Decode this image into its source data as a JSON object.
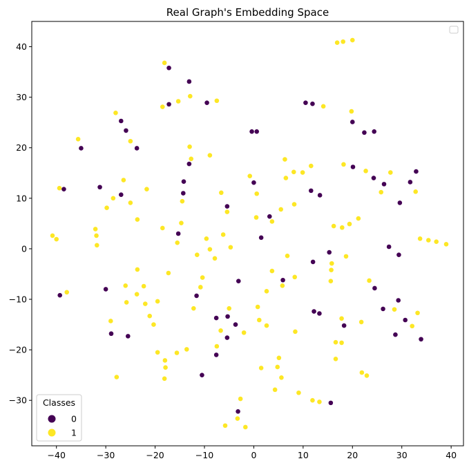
{
  "chart_data": {
    "type": "scatter",
    "title": "Real Graph's Embedding Space",
    "xlabel": "",
    "ylabel": "",
    "xlim": [
      -45,
      42.5
    ],
    "ylim": [
      -39,
      45
    ],
    "x_ticks": [
      -40,
      -30,
      -20,
      -10,
      0,
      10,
      20,
      30,
      40
    ],
    "y_ticks": [
      -30,
      -20,
      -10,
      0,
      10,
      20,
      30,
      40
    ],
    "grid": false,
    "legend": {
      "title": "Classes",
      "placement": "lower-left",
      "entries": [
        {
          "label": "0",
          "color": "#440154"
        },
        {
          "label": "1",
          "color": "#fde725"
        }
      ]
    },
    "series": [
      {
        "name": "0",
        "color": "#440154",
        "points": [
          [
            -17.2,
            35.8
          ],
          [
            -13.1,
            33.1
          ],
          [
            -17.2,
            28.6
          ],
          [
            -9.5,
            28.9
          ],
          [
            -26.9,
            25.3
          ],
          [
            -25.9,
            23.4
          ],
          [
            -23.7,
            19.9
          ],
          [
            -35.0,
            19.9
          ],
          [
            -13.1,
            16.8
          ],
          [
            -14.2,
            13.3
          ],
          [
            -31.2,
            12.2
          ],
          [
            -38.5,
            11.8
          ],
          [
            -26.9,
            10.7
          ],
          [
            -14.3,
            11.0
          ],
          [
            -15.3,
            3.0
          ],
          [
            -5.4,
            8.4
          ],
          [
            -0.4,
            23.2
          ],
          [
            0.6,
            23.2
          ],
          [
            10.5,
            28.9
          ],
          [
            11.9,
            28.7
          ],
          [
            20.0,
            25.1
          ],
          [
            22.4,
            23.0
          ],
          [
            24.4,
            23.2
          ],
          [
            20.1,
            16.2
          ],
          [
            24.3,
            14.0
          ],
          [
            26.4,
            12.8
          ],
          [
            29.6,
            9.1
          ],
          [
            31.7,
            13.2
          ],
          [
            32.9,
            15.3
          ],
          [
            11.6,
            11.5
          ],
          [
            13.4,
            10.6
          ],
          [
            0.0,
            13.1
          ],
          [
            3.2,
            6.4
          ],
          [
            1.5,
            2.2
          ],
          [
            15.3,
            -0.7
          ],
          [
            12.0,
            -2.6
          ],
          [
            27.4,
            0.4
          ],
          [
            29.4,
            -1.2
          ],
          [
            5.9,
            -6.2
          ],
          [
            24.5,
            -7.8
          ],
          [
            26.2,
            -11.9
          ],
          [
            29.3,
            -10.2
          ],
          [
            30.7,
            -14.1
          ],
          [
            28.7,
            -17.0
          ],
          [
            33.9,
            -17.9
          ],
          [
            12.2,
            -12.4
          ],
          [
            13.3,
            -12.8
          ],
          [
            18.3,
            -15.2
          ],
          [
            -3.1,
            -6.4
          ],
          [
            -7.6,
            -13.7
          ],
          [
            -5.3,
            -13.4
          ],
          [
            -3.7,
            -15.0
          ],
          [
            -5.4,
            -17.6
          ],
          [
            -7.6,
            -21.0
          ],
          [
            -11.6,
            -9.3
          ],
          [
            -10.5,
            -25.0
          ],
          [
            -30.0,
            -8.0
          ],
          [
            -39.3,
            -9.2
          ],
          [
            -28.9,
            -16.8
          ],
          [
            -25.5,
            -17.3
          ],
          [
            -3.2,
            -32.2
          ],
          [
            15.6,
            -30.5
          ]
        ]
      },
      {
        "name": "1",
        "color": "#fde725",
        "points": [
          [
            16.9,
            40.8
          ],
          [
            18.1,
            41.0
          ],
          [
            20.0,
            41.3
          ],
          [
            -18.1,
            36.8
          ],
          [
            -12.9,
            30.2
          ],
          [
            -15.3,
            29.2
          ],
          [
            -18.5,
            28.1
          ],
          [
            -7.5,
            29.3
          ],
          [
            -28.0,
            26.9
          ],
          [
            -35.6,
            21.7
          ],
          [
            -25.0,
            21.3
          ],
          [
            -13.0,
            20.2
          ],
          [
            -8.9,
            18.5
          ],
          [
            -12.7,
            17.8
          ],
          [
            14.1,
            28.2
          ],
          [
            19.8,
            27.2
          ],
          [
            6.3,
            17.7
          ],
          [
            8.1,
            15.2
          ],
          [
            9.9,
            15.1
          ],
          [
            11.6,
            16.4
          ],
          [
            18.2,
            16.7
          ],
          [
            22.7,
            15.4
          ],
          [
            27.7,
            15.1
          ],
          [
            -26.4,
            13.6
          ],
          [
            -21.7,
            11.8
          ],
          [
            -39.4,
            12.0
          ],
          [
            -25.0,
            9.1
          ],
          [
            -28.5,
            10.0
          ],
          [
            -29.8,
            8.1
          ],
          [
            -14.5,
            9.4
          ],
          [
            -6.6,
            11.1
          ],
          [
            -5.4,
            7.3
          ],
          [
            -0.8,
            14.4
          ],
          [
            0.6,
            10.9
          ],
          [
            6.5,
            14.0
          ],
          [
            25.8,
            11.2
          ],
          [
            32.8,
            11.3
          ],
          [
            -23.6,
            5.8
          ],
          [
            -32.1,
            3.9
          ],
          [
            -31.9,
            2.6
          ],
          [
            -31.8,
            0.7
          ],
          [
            -40.8,
            2.6
          ],
          [
            -40.0,
            1.9
          ],
          [
            -18.5,
            4.1
          ],
          [
            -14.7,
            5.1
          ],
          [
            -15.5,
            1.2
          ],
          [
            -6.2,
            2.8
          ],
          [
            -9.6,
            2.0
          ],
          [
            -8.9,
            -0.1
          ],
          [
            -4.7,
            0.3
          ],
          [
            0.5,
            6.2
          ],
          [
            3.7,
            5.4
          ],
          [
            5.5,
            7.8
          ],
          [
            8.2,
            8.8
          ],
          [
            16.2,
            4.5
          ],
          [
            17.9,
            4.2
          ],
          [
            19.4,
            4.9
          ],
          [
            21.2,
            6.0
          ],
          [
            33.7,
            2.0
          ],
          [
            35.4,
            1.7
          ],
          [
            37.0,
            1.4
          ],
          [
            39.0,
            0.9
          ],
          [
            -11.5,
            -1.2
          ],
          [
            -7.9,
            -1.9
          ],
          [
            -17.3,
            -4.8
          ],
          [
            -23.6,
            -4.1
          ],
          [
            -10.4,
            -5.7
          ],
          [
            -10.8,
            -7.6
          ],
          [
            -26.0,
            -7.3
          ],
          [
            -22.3,
            -7.4
          ],
          [
            -23.7,
            -9.0
          ],
          [
            -25.8,
            -10.6
          ],
          [
            -22.0,
            -10.9
          ],
          [
            -19.5,
            -10.4
          ],
          [
            -12.2,
            -11.8
          ],
          [
            -21.1,
            -13.3
          ],
          [
            -20.3,
            -15.0
          ],
          [
            -29.0,
            -14.3
          ],
          [
            -5.0,
            -11.8
          ],
          [
            -6.7,
            -16.2
          ],
          [
            -2.0,
            -16.6
          ],
          [
            -7.5,
            -19.3
          ],
          [
            -19.5,
            -20.5
          ],
          [
            -15.6,
            -20.6
          ],
          [
            -13.6,
            -19.9
          ],
          [
            -18.0,
            -22.1
          ],
          [
            -17.9,
            -23.5
          ],
          [
            -18.1,
            -25.7
          ],
          [
            -27.8,
            -25.4
          ],
          [
            -37.9,
            -8.6
          ],
          [
            3.7,
            -4.4
          ],
          [
            2.6,
            -8.4
          ],
          [
            0.8,
            -11.5
          ],
          [
            1.1,
            -14.1
          ],
          [
            2.6,
            -15.2
          ],
          [
            6.8,
            -1.4
          ],
          [
            8.3,
            -5.6
          ],
          [
            5.8,
            -7.3
          ],
          [
            8.4,
            -16.4
          ],
          [
            15.8,
            -2.9
          ],
          [
            15.7,
            -4.2
          ],
          [
            15.6,
            -6.4
          ],
          [
            18.7,
            -1.5
          ],
          [
            17.8,
            -13.8
          ],
          [
            17.8,
            -18.6
          ],
          [
            16.6,
            -18.5
          ],
          [
            16.6,
            -21.8
          ],
          [
            21.8,
            -14.5
          ],
          [
            23.4,
            -6.3
          ],
          [
            28.5,
            -12.0
          ],
          [
            32.1,
            -15.3
          ],
          [
            33.2,
            -12.7
          ],
          [
            1.5,
            -23.6
          ],
          [
            5.1,
            -21.6
          ],
          [
            4.8,
            -23.4
          ],
          [
            5.6,
            -25.5
          ],
          [
            21.9,
            -24.5
          ],
          [
            22.9,
            -25.1
          ],
          [
            4.3,
            -27.9
          ],
          [
            9.1,
            -28.5
          ],
          [
            11.9,
            -30.0
          ],
          [
            13.3,
            -30.3
          ],
          [
            -2.7,
            -29.7
          ],
          [
            -3.3,
            -33.6
          ],
          [
            -5.8,
            -35.0
          ],
          [
            -1.7,
            -35.3
          ]
        ]
      }
    ]
  }
}
